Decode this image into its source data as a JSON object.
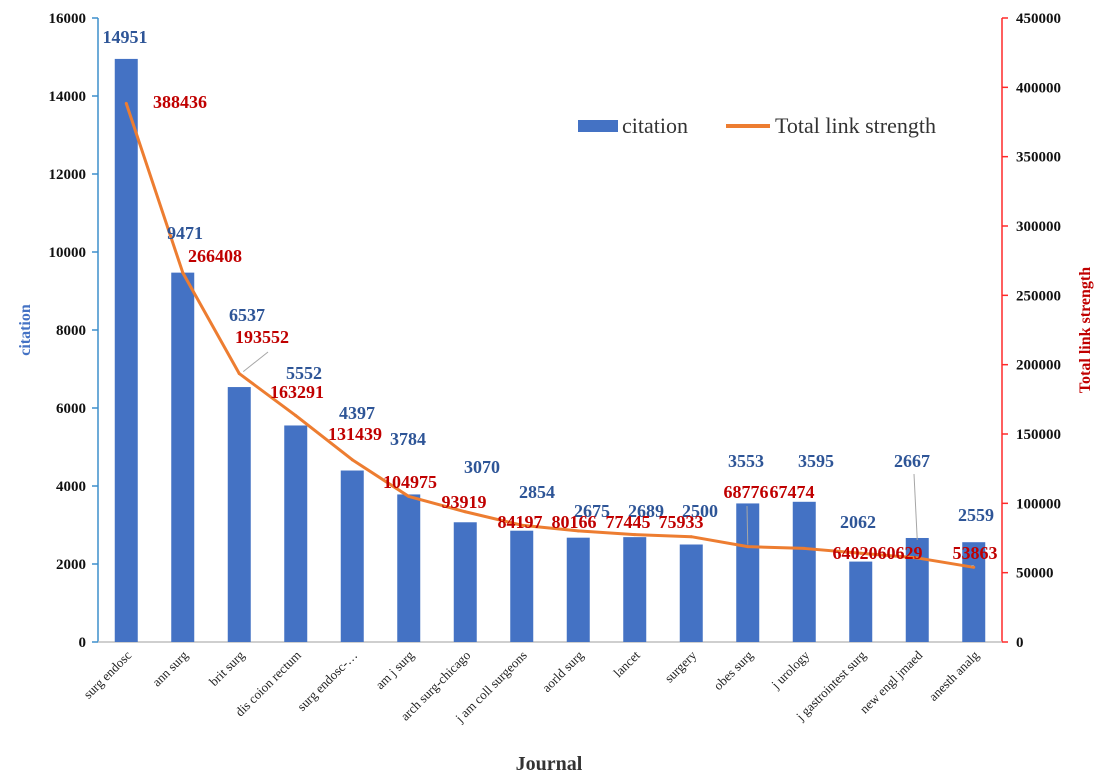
{
  "chart_data": {
    "type": "bar+line",
    "title": "",
    "xlabel": "Journal",
    "ylabel_left": "citation",
    "ylabel_right": "Total link strength",
    "ylim_left": [
      0,
      16000
    ],
    "ylim_right": [
      0,
      450000
    ],
    "yticks_left": [
      "0",
      "2000",
      "4000",
      "6000",
      "8000",
      "10000",
      "12000",
      "14000",
      "16000"
    ],
    "yticks_right": [
      "0",
      "50000",
      "100000",
      "150000",
      "200000",
      "250000",
      "300000",
      "350000",
      "400000",
      "450000"
    ],
    "grid": false,
    "legend_position": "top-right",
    "categories": [
      "surg endosc",
      "ann surg",
      "brit surg",
      "dis coion rectum",
      "surg endosc-…",
      "am j surg",
      "arch surg-chicago",
      "j am coll surgeons",
      "aorld surg",
      "lancet",
      "surgery",
      "obes surg",
      "j urology",
      "j gastrointest surg",
      "new engl jmaed",
      "anesth analg"
    ],
    "series": [
      {
        "name": "citation",
        "type": "bar",
        "axis": "left",
        "color": "#4472C4",
        "label_color": "#2E5597",
        "values": [
          14951,
          9471,
          6537,
          5552,
          4397,
          3784,
          3070,
          2854,
          2675,
          2689,
          2500,
          3553,
          3595,
          2062,
          2667,
          2559
        ],
        "labels": [
          "14951",
          "9471",
          "6537",
          "5552",
          "4397",
          "3784",
          "3070",
          "2854",
          "2675",
          "2689",
          "2500",
          "3553",
          "3595",
          "2062",
          "2667",
          "2559"
        ]
      },
      {
        "name": "Total link strength",
        "type": "line",
        "axis": "right",
        "color": "#ED7D31",
        "label_color": "#C00000",
        "values": [
          388436,
          266408,
          193552,
          163291,
          131439,
          104975,
          93919,
          84197,
          80166,
          77445,
          75933,
          68776,
          67474,
          64020,
          60629,
          53863
        ],
        "labels": [
          "388436",
          "266408",
          "193552",
          "163291",
          "131439",
          "104975",
          "93919",
          "84197",
          "80166",
          "77445",
          "75933",
          "68776",
          "67474",
          "64020",
          "60629",
          "53863"
        ]
      }
    ]
  },
  "colors": {
    "left_axis": "#3D8FCC",
    "right_axis": "#FF2A2A",
    "axis_title_left": "#4472C4",
    "axis_title_right": "#C00000",
    "x_axis": "#BFBFBF"
  }
}
